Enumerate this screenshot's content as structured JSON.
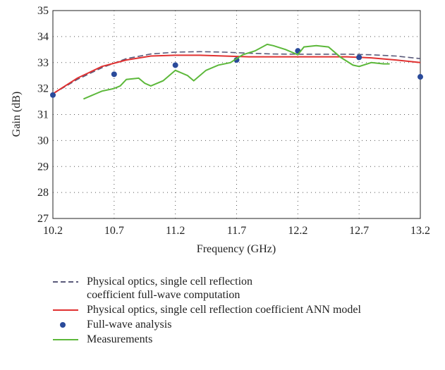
{
  "chart_data": {
    "type": "line",
    "xlabel": "Frequency (GHz)",
    "ylabel": "Gain (dB)",
    "xlim": [
      10.2,
      13.2
    ],
    "xticks": [
      10.2,
      10.7,
      11.2,
      11.7,
      12.2,
      12.7,
      13.2
    ],
    "ylim": [
      27,
      35
    ],
    "yticks": [
      27,
      28,
      29,
      30,
      31,
      32,
      33,
      34,
      35
    ],
    "grid": true,
    "series": [
      {
        "name": "Physical optics, single cell reflection\ncoefficient full-wave computation",
        "color": "#5a5a7a",
        "style": "dashed",
        "x": [
          10.2,
          10.4,
          10.6,
          10.8,
          11.0,
          11.2,
          11.4,
          11.6,
          11.8,
          12.0,
          12.2,
          12.4,
          12.6,
          12.8,
          13.0,
          13.2
        ],
        "values": [
          31.8,
          32.35,
          32.8,
          33.15,
          33.33,
          33.4,
          33.42,
          33.4,
          33.36,
          33.33,
          33.32,
          33.32,
          33.32,
          33.3,
          33.25,
          33.15
        ]
      },
      {
        "name": "Physical optics, single cell reflection coefficient ANN model",
        "color": "#e03030",
        "style": "solid",
        "x": [
          10.2,
          10.4,
          10.6,
          10.8,
          11.0,
          11.2,
          11.4,
          11.6,
          11.8,
          12.0,
          12.2,
          12.4,
          12.6,
          12.8,
          13.0,
          13.2
        ],
        "values": [
          31.8,
          32.4,
          32.85,
          33.1,
          33.25,
          33.28,
          33.28,
          33.25,
          33.22,
          33.22,
          33.22,
          33.22,
          33.22,
          33.18,
          33.1,
          33.0
        ]
      },
      {
        "name": "Full-wave analysis",
        "color": "#2a4a9a",
        "style": "marker",
        "x": [
          10.2,
          10.7,
          11.2,
          11.7,
          12.2,
          12.7,
          13.2
        ],
        "values": [
          31.75,
          32.55,
          32.9,
          33.1,
          33.45,
          33.2,
          32.45
        ]
      },
      {
        "name": "Measurements",
        "color": "#5cb83a",
        "style": "solid",
        "x": [
          10.45,
          10.55,
          10.6,
          10.7,
          10.75,
          10.8,
          10.9,
          10.95,
          11.0,
          11.1,
          11.2,
          11.3,
          11.35,
          11.45,
          11.55,
          11.65,
          11.75,
          11.85,
          11.95,
          12.0,
          12.1,
          12.2,
          12.25,
          12.35,
          12.45,
          12.55,
          12.65,
          12.7,
          12.8,
          12.9,
          12.95
        ],
        "values": [
          31.6,
          31.8,
          31.9,
          32.0,
          32.1,
          32.35,
          32.4,
          32.2,
          32.1,
          32.3,
          32.7,
          32.5,
          32.3,
          32.7,
          32.9,
          33.0,
          33.3,
          33.45,
          33.7,
          33.65,
          33.5,
          33.3,
          33.6,
          33.65,
          33.6,
          33.2,
          32.9,
          32.85,
          33.0,
          32.95,
          32.95
        ]
      }
    ]
  }
}
